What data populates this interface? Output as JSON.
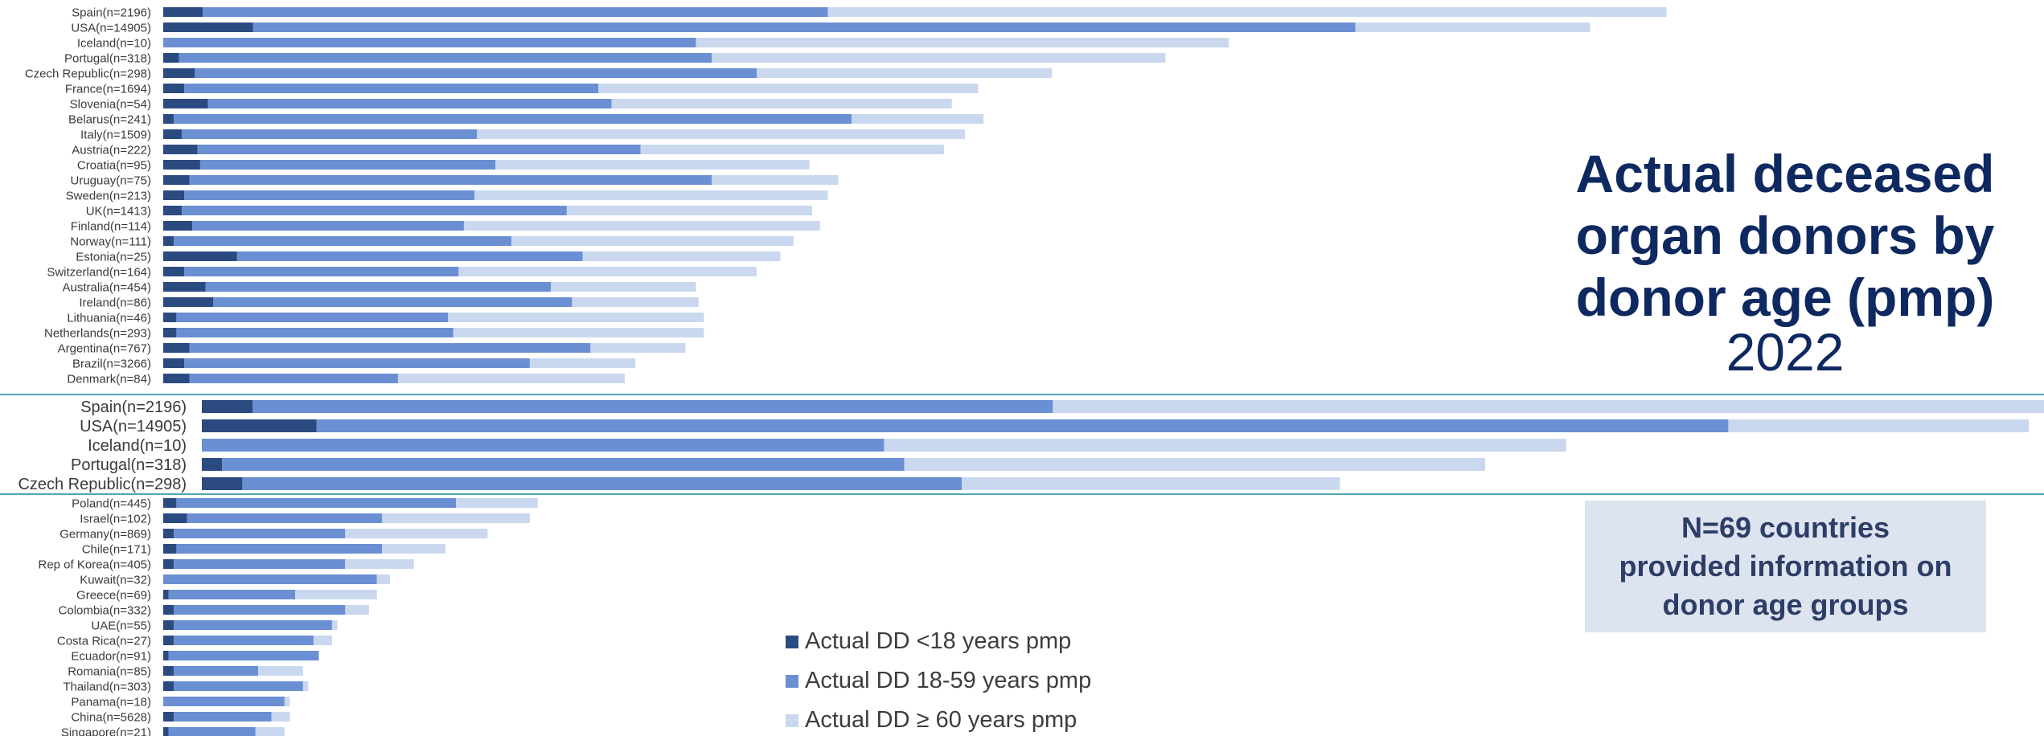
{
  "title": {
    "main": "Actual deceased\norgan donors by\ndonor age (pmp)",
    "year": "2022"
  },
  "info_box": "N=69 countries\nprovided information on\ndonor age groups",
  "legend": [
    {
      "label": "Actual DD <18 years pmp",
      "color": "#2b4a80"
    },
    {
      "label": "Actual DD 18-59 years pmp",
      "color": "#6a8fd3"
    },
    {
      "label": "Actual DD ≥ 60 years pmp",
      "color": "#c9d8ef"
    }
  ],
  "colors": {
    "under18": "#2b4a80",
    "age18to59": "#6a8fd3",
    "over60": "#c9d8ef",
    "zoom_rule": "#4fa6b3"
  },
  "chart_data": [
    {
      "type": "bar",
      "orientation": "horizontal",
      "stacked": true,
      "panel": "main-top",
      "series": [
        {
          "name": "Actual DD <18 years pmp",
          "values": [
            1.5,
            3.4,
            0,
            0.6,
            1.2,
            0.8,
            1.7,
            0.4,
            0.7,
            1.3,
            1.4,
            1.0,
            0.8,
            0.7,
            1.1,
            0.4,
            2.8,
            0.8,
            1.6,
            1.9,
            0.5,
            0.5,
            1.0,
            0.8,
            1.0
          ]
        },
        {
          "name": "Actual DD 18-59 years pmp",
          "values": [
            23.7,
            41.8,
            20.2,
            20.2,
            21.3,
            15.7,
            15.3,
            25.7,
            11.2,
            16.8,
            11.2,
            19.8,
            11.0,
            14.6,
            10.3,
            12.8,
            13.1,
            10.4,
            13.1,
            13.6,
            10.3,
            10.5,
            15.2,
            13.1,
            7.9
          ]
        },
        {
          "name": "Actual DD ≥ 60 years pmp",
          "values": [
            31.8,
            8.9,
            20.2,
            17.2,
            11.2,
            14.4,
            12.9,
            5.0,
            18.5,
            11.5,
            11.9,
            4.8,
            13.4,
            9.3,
            13.5,
            10.7,
            7.5,
            11.3,
            5.5,
            4.8,
            9.7,
            9.5,
            3.6,
            4.0,
            8.6
          ]
        }
      ],
      "categories": [
        "Spain(n=2196)",
        "USA(n=14905)",
        "Iceland(n=10)",
        "Portugal(n=318)",
        "Czech Republic(n=298)",
        "France(n=1694)",
        "Slovenia(n=54)",
        "Belarus(n=241)",
        "Italy(n=1509)",
        "Austria(n=222)",
        "Croatia(n=95)",
        "Uruguay(n=75)",
        "Sweden(n=213)",
        "UK(n=1413)",
        "Finland(n=114)",
        "Norway(n=111)",
        "Estonia(n=25)",
        "Switzerland(n=164)",
        "Australia(n=454)",
        "Ireland(n=86)",
        "Lithuania(n=46)",
        "Netherlands(n=293)",
        "Argentina(n=767)",
        "Brazil(n=3266)",
        "Denmark(n=84)"
      ]
    },
    {
      "type": "bar",
      "orientation": "horizontal",
      "stacked": true,
      "panel": "zoom",
      "series": [
        {
          "name": "Actual DD <18 years pmp",
          "values": [
            1.5,
            3.4,
            0,
            0.6,
            1.2
          ]
        },
        {
          "name": "Actual DD 18-59 years pmp",
          "values": [
            23.7,
            41.8,
            20.2,
            20.2,
            21.3
          ]
        },
        {
          "name": "Actual DD ≥ 60 years pmp",
          "values": [
            31.8,
            8.9,
            20.2,
            17.2,
            11.2
          ]
        }
      ],
      "categories": [
        "Spain(n=2196)",
        "USA(n=14905)",
        "Iceland(n=10)",
        "Portugal(n=318)",
        "Czech Republic(n=298)"
      ]
    },
    {
      "type": "bar",
      "orientation": "horizontal",
      "stacked": true,
      "panel": "main-bottom",
      "series": [
        {
          "name": "Actual DD <18 years pmp",
          "values": [
            0.5,
            0.9,
            0.4,
            0.5,
            0.4,
            0,
            0.2,
            0.4,
            0.4,
            0.4,
            0.2,
            0.4,
            0.4,
            0,
            0.4,
            0.2
          ]
        },
        {
          "name": "Actual DD 18-59 years pmp",
          "values": [
            10.6,
            7.4,
            6.5,
            7.8,
            6.5,
            8.1,
            4.8,
            6.5,
            6.0,
            5.3,
            5.7,
            3.2,
            4.9,
            4.6,
            3.7,
            3.3
          ]
        },
        {
          "name": "Actual DD ≥ 60 years pmp",
          "values": [
            3.1,
            5.6,
            5.4,
            2.4,
            2.6,
            0.5,
            3.1,
            0.9,
            0.2,
            0.7,
            0,
            1.7,
            0.2,
            0.2,
            0.7,
            1.1
          ]
        }
      ],
      "categories": [
        "Poland(n=445)",
        "Israel(n=102)",
        "Germany(n=869)",
        "Chile(n=171)",
        "Rep of Korea(n=405)",
        "Kuwait(n=32)",
        "Greece(n=69)",
        "Colombia(n=332)",
        "UAE(n=55)",
        "Costa Rica(n=27)",
        "Ecuador(n=91)",
        "Romania(n=85)",
        "Thailand(n=303)",
        "Panama(n=18)",
        "China(n=5628)",
        "Singapore(n=21)"
      ]
    }
  ]
}
